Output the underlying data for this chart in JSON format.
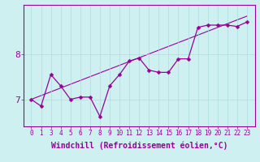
{
  "xlabel": "Windchill (Refroidissement éolien,°C)",
  "ylabel": "",
  "background_color": "#cff0f0",
  "line_color": "#990099",
  "marker_color": "#990099",
  "y_values": [
    7.0,
    6.85,
    7.55,
    7.3,
    7.0,
    7.05,
    7.05,
    6.62,
    7.3,
    7.55,
    7.85,
    7.92,
    7.65,
    7.6,
    7.6,
    7.9,
    7.9,
    8.6,
    8.65,
    8.65,
    8.65,
    8.62,
    8.72
  ],
  "trend_x": [
    0,
    23
  ],
  "trend_y": [
    7.0,
    8.85
  ],
  "ylim": [
    6.4,
    9.1
  ],
  "xlim": [
    -0.5,
    23.5
  ],
  "x_indices": [
    0,
    1,
    2,
    3,
    4,
    5,
    6,
    7,
    8,
    9,
    10,
    11,
    12,
    13,
    14,
    15,
    16,
    17,
    18,
    19,
    20,
    21,
    22
  ],
  "xtick_labels": [
    "0",
    "1",
    "3",
    "4",
    "5",
    "6",
    "7",
    "8",
    "9",
    "10",
    "11",
    "12",
    "13",
    "14",
    "15",
    "16",
    "17",
    "18",
    "19",
    "20",
    "21",
    "22",
    "23"
  ],
  "yticks": [
    7,
    8
  ],
  "grid_color": "#aadddd",
  "tick_fontsize": 5.5,
  "xlabel_fontsize": 7,
  "axis_color": "#990099",
  "marker_size": 2.5
}
